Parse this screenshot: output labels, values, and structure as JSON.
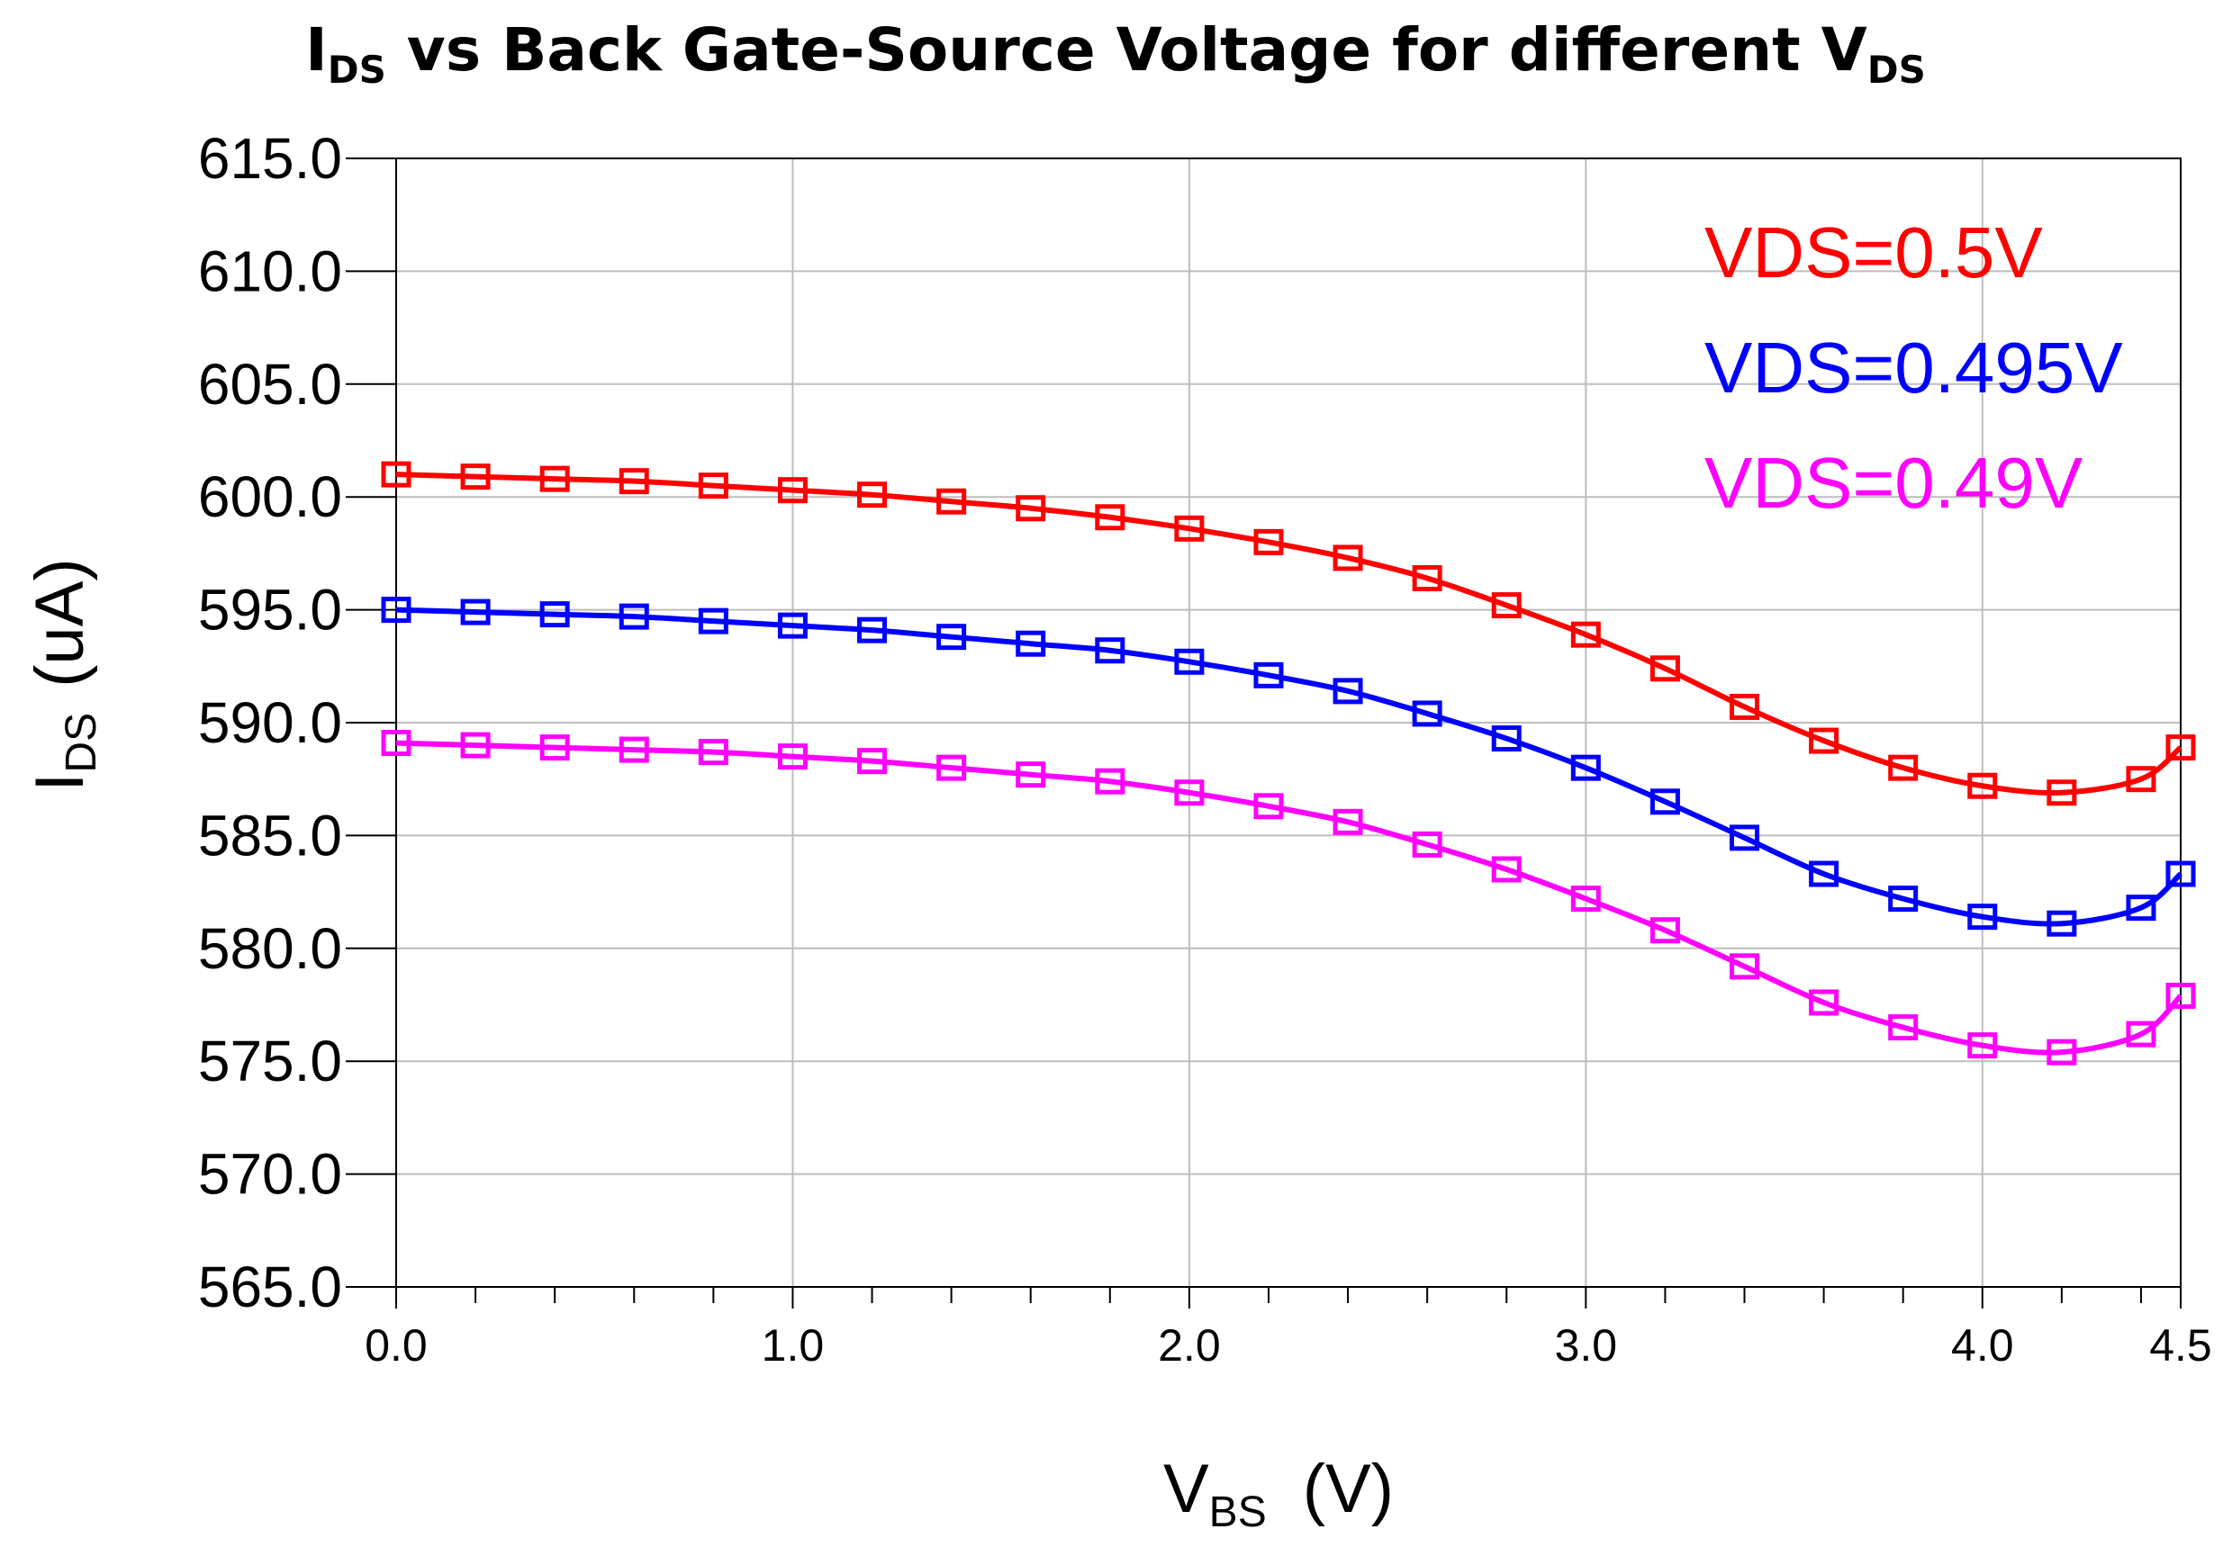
{
  "chart_data": {
    "type": "line",
    "title": {
      "main_prefix": "I",
      "main_prefix_sub": "DS",
      "main_text": " vs Back Gate-Source Voltage for different V",
      "main_suffix_sub": "DS"
    },
    "xlabel": {
      "text": "V",
      "sub": "BS",
      "unit": "(V)"
    },
    "ylabel": {
      "text": "I",
      "sub": "DS",
      "unit": "(uA)"
    },
    "xlim": [
      0.0,
      4.5
    ],
    "ylim": [
      565.0,
      615.0
    ],
    "xticks": [
      {
        "value": 0.0,
        "label": "0.0"
      },
      {
        "value": 1.0,
        "label": "1.0"
      },
      {
        "value": 2.0,
        "label": "2.0"
      },
      {
        "value": 3.0,
        "label": "3.0"
      },
      {
        "value": 4.0,
        "label": "4.0"
      },
      {
        "value": 4.5,
        "label": "4.5"
      }
    ],
    "yticks": [
      {
        "value": 615.0,
        "label": "615.0"
      },
      {
        "value": 610.0,
        "label": "610.0"
      },
      {
        "value": 605.0,
        "label": "605.0"
      },
      {
        "value": 600.0,
        "label": "600.0"
      },
      {
        "value": 595.0,
        "label": "595.0"
      },
      {
        "value": 590.0,
        "label": "590.0"
      },
      {
        "value": 585.0,
        "label": "585.0"
      },
      {
        "value": 580.0,
        "label": "580.0"
      },
      {
        "value": 575.0,
        "label": "575.0"
      },
      {
        "value": 570.0,
        "label": "570.0"
      },
      {
        "value": 565.0,
        "label": "565.0"
      }
    ],
    "x": [
      0.0,
      0.2,
      0.4,
      0.6,
      0.8,
      1.0,
      1.2,
      1.4,
      1.6,
      1.8,
      2.0,
      2.2,
      2.4,
      2.6,
      2.8,
      3.0,
      3.2,
      3.4,
      3.6,
      3.8,
      4.0,
      4.2,
      4.4,
      4.5
    ],
    "series": [
      {
        "name": "VDS=0.5V",
        "color": "#ff0000",
        "values": [
          601.0,
          600.9,
          600.8,
          600.7,
          600.5,
          600.3,
          600.1,
          599.8,
          599.5,
          599.1,
          598.6,
          598.0,
          597.3,
          596.4,
          595.2,
          593.9,
          592.4,
          590.7,
          589.2,
          588.0,
          587.2,
          586.9,
          587.5,
          588.9
        ]
      },
      {
        "name": "VDS=0.495V",
        "color": "#0000ff",
        "values": [
          595.0,
          594.9,
          594.8,
          594.7,
          594.5,
          594.3,
          594.1,
          593.8,
          593.5,
          593.2,
          592.7,
          592.1,
          591.4,
          590.4,
          589.3,
          588.0,
          586.5,
          584.9,
          583.3,
          582.2,
          581.4,
          581.1,
          581.8,
          583.3
        ]
      },
      {
        "name": "VDS=0.49V",
        "color": "#ff00ff",
        "values": [
          589.1,
          589.0,
          588.9,
          588.8,
          588.7,
          588.5,
          588.3,
          588.0,
          587.7,
          587.4,
          586.9,
          586.3,
          585.6,
          584.6,
          583.5,
          582.2,
          580.8,
          579.2,
          577.6,
          576.5,
          575.7,
          575.4,
          576.2,
          577.9
        ]
      }
    ],
    "legend_position": "top-right",
    "grid": true
  }
}
